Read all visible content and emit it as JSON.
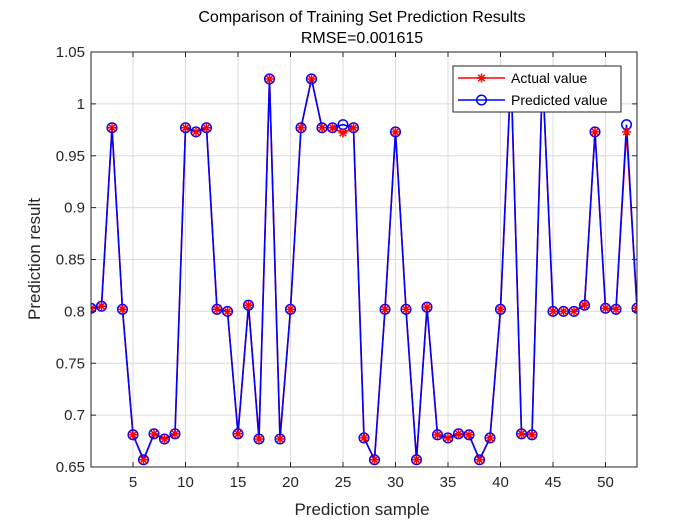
{
  "chart_data": {
    "type": "line",
    "title": "Comparison of Training Set Prediction Results",
    "subtitle": "RMSE=0.001615",
    "xlabel": "Prediction sample",
    "ylabel": "Prediction result",
    "xlim": [
      1,
      53
    ],
    "ylim": [
      0.65,
      1.05
    ],
    "xticks": [
      5,
      10,
      15,
      20,
      25,
      30,
      35,
      40,
      45,
      50
    ],
    "xtick_labels": [
      "5",
      "10",
      "15",
      "20",
      "25",
      "30",
      "35",
      "40",
      "45",
      "50"
    ],
    "yticks": [
      0.65,
      0.7,
      0.75,
      0.8,
      0.85,
      0.9,
      0.95,
      1,
      1.05
    ],
    "ytick_labels": [
      "0.65",
      "0.7",
      "0.75",
      "0.8",
      "0.85",
      "0.9",
      "0.95",
      "1",
      "1.05"
    ],
    "grid": true,
    "legend_position": "top-right",
    "x": [
      1,
      2,
      3,
      4,
      5,
      6,
      7,
      8,
      9,
      10,
      11,
      12,
      13,
      14,
      15,
      16,
      17,
      18,
      19,
      20,
      21,
      22,
      23,
      24,
      25,
      26,
      27,
      28,
      29,
      30,
      31,
      32,
      33,
      34,
      35,
      36,
      37,
      38,
      39,
      40,
      41,
      42,
      43,
      44,
      45,
      46,
      47,
      48,
      49,
      50,
      51,
      52,
      53
    ],
    "series": [
      {
        "name": "Actual value",
        "color": "#ff0000",
        "marker": "asterisk",
        "values": [
          0.803,
          0.805,
          0.977,
          0.802,
          0.681,
          0.657,
          0.682,
          0.677,
          0.682,
          0.977,
          0.973,
          0.977,
          0.802,
          0.8,
          0.682,
          0.806,
          0.677,
          1.024,
          0.677,
          0.802,
          0.977,
          1.024,
          0.977,
          0.977,
          0.972,
          0.977,
          0.678,
          0.657,
          0.802,
          0.973,
          0.802,
          0.657,
          0.804,
          0.681,
          0.678,
          0.682,
          0.681,
          0.657,
          0.678,
          0.802,
          1.03,
          0.682,
          0.681,
          1.03,
          0.8,
          0.8,
          0.8,
          0.806,
          0.973,
          0.803,
          0.802,
          0.973,
          0.803
        ]
      },
      {
        "name": "Predicted value",
        "color": "#0000ff",
        "marker": "circle",
        "values": [
          0.803,
          0.805,
          0.977,
          0.802,
          0.681,
          0.657,
          0.682,
          0.677,
          0.682,
          0.977,
          0.973,
          0.977,
          0.802,
          0.8,
          0.682,
          0.806,
          0.677,
          1.024,
          0.677,
          0.802,
          0.977,
          1.024,
          0.977,
          0.977,
          0.98,
          0.977,
          0.678,
          0.657,
          0.802,
          0.973,
          0.802,
          0.657,
          0.804,
          0.681,
          0.678,
          0.682,
          0.681,
          0.657,
          0.678,
          0.802,
          1.03,
          0.682,
          0.681,
          1.03,
          0.8,
          0.8,
          0.8,
          0.806,
          0.973,
          0.803,
          0.802,
          0.98,
          0.803
        ]
      }
    ]
  }
}
